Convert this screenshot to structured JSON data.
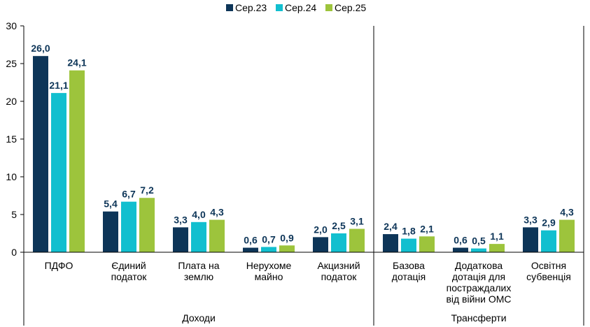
{
  "chart_data": {
    "type": "bar",
    "categories": [
      [
        "ПДФО"
      ],
      [
        "Єдиний",
        "податок"
      ],
      [
        "Плата на",
        "землю"
      ],
      [
        "Нерухоме",
        "майно"
      ],
      [
        "Акцизний",
        "податок"
      ],
      [
        "Базова",
        "дотація"
      ],
      [
        "Додаткова",
        "дотація для",
        "постраждалих",
        "від війни ОМС"
      ],
      [
        "Освітня",
        "субвенція"
      ]
    ],
    "series": [
      {
        "name": "Сер.23",
        "color": "#0d3558",
        "values": [
          26.0,
          5.4,
          3.3,
          0.6,
          2.0,
          2.4,
          0.6,
          3.3
        ],
        "labels": [
          "26,0",
          "5,4",
          "3,3",
          "0,6",
          "2,0",
          "2,4",
          "0,6",
          "3,3"
        ]
      },
      {
        "name": "Сер.24",
        "color": "#12bfcf",
        "values": [
          21.1,
          6.7,
          4.0,
          0.7,
          2.5,
          1.8,
          0.5,
          2.9
        ],
        "labels": [
          "21,1",
          "6,7",
          "4,0",
          "0,7",
          "2,5",
          "1,8",
          "0,5",
          "2,9"
        ]
      },
      {
        "name": "Сер.25",
        "color": "#9dc43c",
        "values": [
          24.1,
          7.2,
          4.3,
          0.9,
          3.1,
          2.1,
          1.1,
          4.3
        ],
        "labels": [
          "24,1",
          "7,2",
          "4,3",
          "0,9",
          "3,1",
          "2,1",
          "1,1",
          "4,3"
        ]
      }
    ],
    "groups": [
      {
        "name": "Доходи",
        "from": 0,
        "to": 4
      },
      {
        "name": "Трансферти",
        "from": 5,
        "to": 7
      }
    ],
    "ylim": [
      0,
      30
    ],
    "yticks": [
      0,
      5,
      10,
      15,
      20,
      25,
      30
    ],
    "grid": false,
    "legend_position": "top-center"
  }
}
